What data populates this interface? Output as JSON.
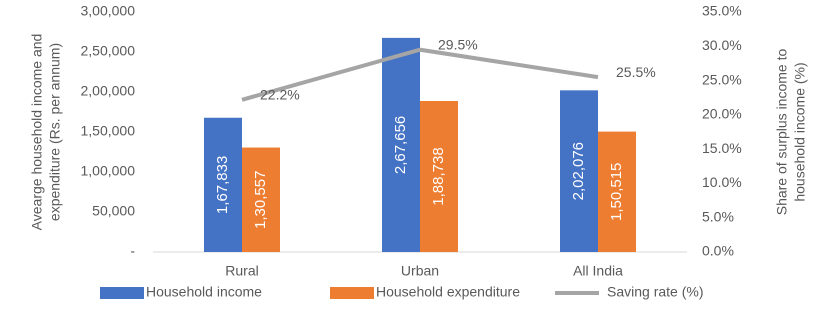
{
  "chart_data": {
    "type": "bar-line",
    "categories": [
      "Rural",
      "Urban",
      "All India"
    ],
    "y_label": [
      "Avearge household income and",
      "expenditure (Rs. per annum)"
    ],
    "y2_label": [
      "Share of surplus income to",
      "household income (%)"
    ],
    "ylim": [
      0,
      300000
    ],
    "yticks": [
      {
        "value": 0,
        "label": "-"
      },
      {
        "value": 50000,
        "label": "50,000"
      },
      {
        "value": 100000,
        "label": "1,00,000"
      },
      {
        "value": 150000,
        "label": "1,50,000"
      },
      {
        "value": 200000,
        "label": "2,00,000"
      },
      {
        "value": 250000,
        "label": "2,50,000"
      },
      {
        "value": 300000,
        "label": "3,00,000"
      }
    ],
    "y2lim": [
      0,
      35
    ],
    "y2ticks": [
      {
        "value": 0,
        "label": "0.0%"
      },
      {
        "value": 5,
        "label": "5.0%"
      },
      {
        "value": 10,
        "label": "10.0%"
      },
      {
        "value": 15,
        "label": "15.0%"
      },
      {
        "value": 20,
        "label": "20.0%"
      },
      {
        "value": 25,
        "label": "25.0%"
      },
      {
        "value": 30,
        "label": "30.0%"
      },
      {
        "value": 35,
        "label": "35.0%"
      }
    ],
    "legend": "bottom",
    "series": [
      {
        "name": "Household income",
        "type": "bar",
        "color": "#4472c4",
        "values": [
          167833,
          267656,
          202076
        ],
        "value_labels": [
          "1,67,833",
          "2,67,656",
          "2,02,076"
        ]
      },
      {
        "name": "Household expenditure",
        "type": "bar",
        "color": "#ed7d31",
        "values": [
          130557,
          188738,
          150515
        ],
        "value_labels": [
          "1,30,557",
          "1,88,738",
          "1,50,515"
        ]
      },
      {
        "name": "Saving rate (%)",
        "type": "line",
        "axis": "y2",
        "color": "#a5a5a5",
        "values": [
          22.2,
          29.5,
          25.5
        ],
        "value_labels": [
          "22.2%",
          "29.5%",
          "25.5%"
        ]
      }
    ]
  }
}
